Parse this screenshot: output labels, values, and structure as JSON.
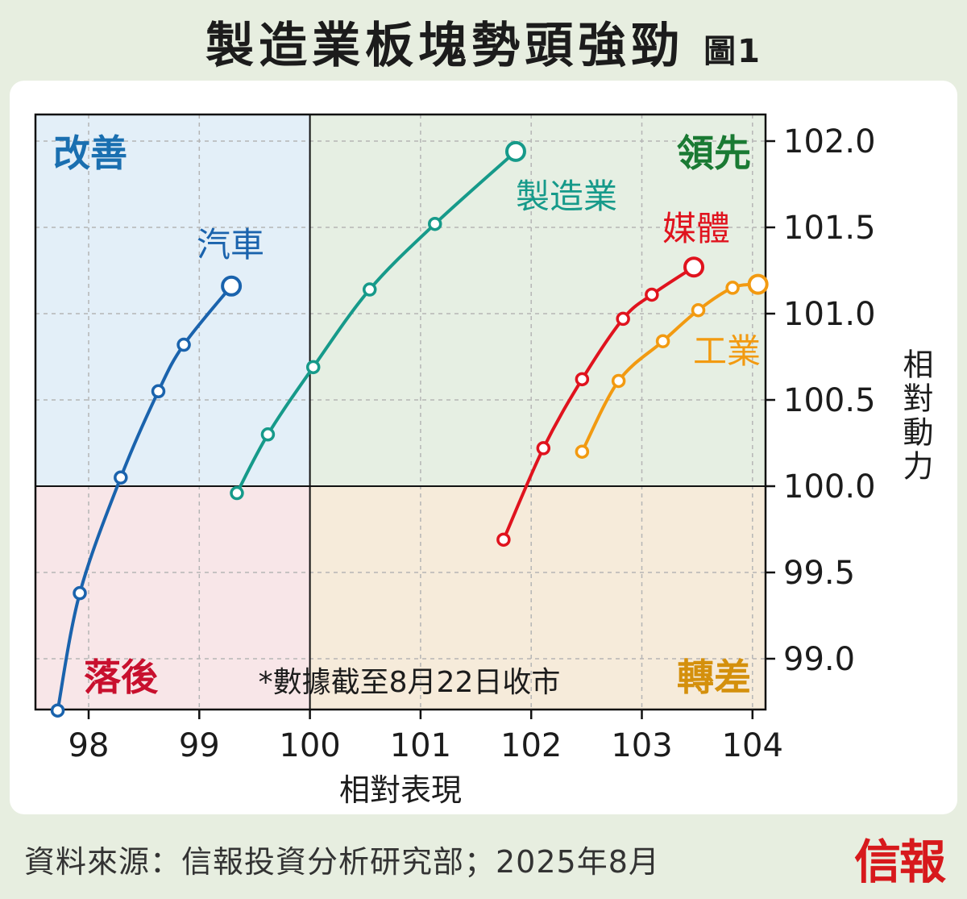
{
  "header": {
    "title": "製造業板塊勢頭強勁",
    "figure_label": "圖1"
  },
  "footer": {
    "source": "資料來源：信報投資分析研究部；2025年8月",
    "logo": "信報"
  },
  "colors": {
    "page_background": "#e7eee0",
    "quadrant_improving": "#e3eff8",
    "quadrant_leading": "#e6efe3",
    "quadrant_lagging": "#f8e6e8",
    "quadrant_weakening": "#f6ebda"
  },
  "chart_data": {
    "type": "scatter",
    "title": "製造業板塊勢頭強勁",
    "xlabel": "相對表現",
    "ylabel": "相對動力",
    "xlim": [
      97.6,
      104.1
    ],
    "ylim": [
      98.7,
      102.15
    ],
    "x_ticks": [
      "98",
      "99",
      "100",
      "101",
      "102",
      "103",
      "104"
    ],
    "y_ticks": [
      "99.0",
      "99.5",
      "100.0",
      "100.5",
      "101.0",
      "101.5",
      "102.0"
    ],
    "grid": true,
    "reference_lines": {
      "x": 100,
      "y": 100
    },
    "quadrants": [
      {
        "key": "improving",
        "label": "改善",
        "color": "#1a6fb0"
      },
      {
        "key": "leading",
        "label": "領先",
        "color": "#1a7a33"
      },
      {
        "key": "lagging",
        "label": "落後",
        "color": "#c8102e"
      },
      {
        "key": "weakening",
        "label": "轉差",
        "color": "#d4900c"
      }
    ],
    "note": "*數據截至8月22日收市",
    "series": [
      {
        "name": "汽車",
        "color": "#1a63ad",
        "points": [
          [
            97.72,
            98.7
          ],
          [
            97.92,
            99.38
          ],
          [
            98.29,
            100.05
          ],
          [
            98.63,
            100.55
          ],
          [
            98.86,
            100.82
          ],
          [
            99.29,
            101.16
          ]
        ]
      },
      {
        "name": "製造業",
        "color": "#169a8a",
        "points": [
          [
            99.34,
            99.96
          ],
          [
            99.62,
            100.3
          ],
          [
            100.03,
            100.69
          ],
          [
            100.54,
            101.14
          ],
          [
            101.13,
            101.52
          ],
          [
            101.86,
            101.94
          ]
        ]
      },
      {
        "name": "媒體",
        "color": "#e0131e",
        "points": [
          [
            101.75,
            99.69
          ],
          [
            102.11,
            100.22
          ],
          [
            102.46,
            100.62
          ],
          [
            102.83,
            100.97
          ],
          [
            103.09,
            101.11
          ],
          [
            103.47,
            101.27
          ]
        ]
      },
      {
        "name": "工業",
        "color": "#f29a11",
        "points": [
          [
            102.46,
            100.2
          ],
          [
            102.79,
            100.61
          ],
          [
            103.19,
            100.84
          ],
          [
            103.51,
            101.02
          ],
          [
            103.82,
            101.15
          ],
          [
            104.05,
            101.17
          ]
        ]
      }
    ]
  }
}
